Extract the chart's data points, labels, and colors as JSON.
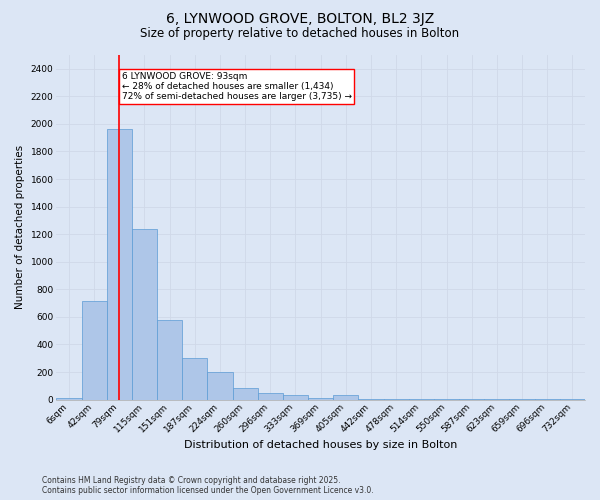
{
  "title1": "6, LYNWOOD GROVE, BOLTON, BL2 3JZ",
  "title2": "Size of property relative to detached houses in Bolton",
  "xlabel": "Distribution of detached houses by size in Bolton",
  "ylabel": "Number of detached properties",
  "categories": [
    "6sqm",
    "42sqm",
    "79sqm",
    "115sqm",
    "151sqm",
    "187sqm",
    "224sqm",
    "260sqm",
    "296sqm",
    "333sqm",
    "369sqm",
    "405sqm",
    "442sqm",
    "478sqm",
    "514sqm",
    "550sqm",
    "587sqm",
    "623sqm",
    "659sqm",
    "696sqm",
    "732sqm"
  ],
  "values": [
    15,
    715,
    1960,
    1235,
    575,
    305,
    200,
    85,
    50,
    35,
    10,
    35,
    5,
    5,
    5,
    5,
    5,
    5,
    5,
    5,
    5
  ],
  "bar_color": "#aec6e8",
  "bar_edge_color": "#5b9bd5",
  "grid_color": "#d0d8e8",
  "background_color": "#dce6f5",
  "vline_x": 2.0,
  "vline_color": "red",
  "annotation_text": "6 LYNWOOD GROVE: 93sqm\n← 28% of detached houses are smaller (1,434)\n72% of semi-detached houses are larger (3,735) →",
  "annotation_box_color": "white",
  "annotation_box_edge_color": "red",
  "ylim": [
    0,
    2500
  ],
  "yticks": [
    0,
    200,
    400,
    600,
    800,
    1000,
    1200,
    1400,
    1600,
    1800,
    2000,
    2200,
    2400
  ],
  "footer": "Contains HM Land Registry data © Crown copyright and database right 2025.\nContains public sector information licensed under the Open Government Licence v3.0.",
  "title1_fontsize": 10,
  "title2_fontsize": 8.5,
  "xlabel_fontsize": 8,
  "ylabel_fontsize": 7.5,
  "tick_fontsize": 6.5,
  "footer_fontsize": 5.5,
  "annotation_fontsize": 6.5
}
